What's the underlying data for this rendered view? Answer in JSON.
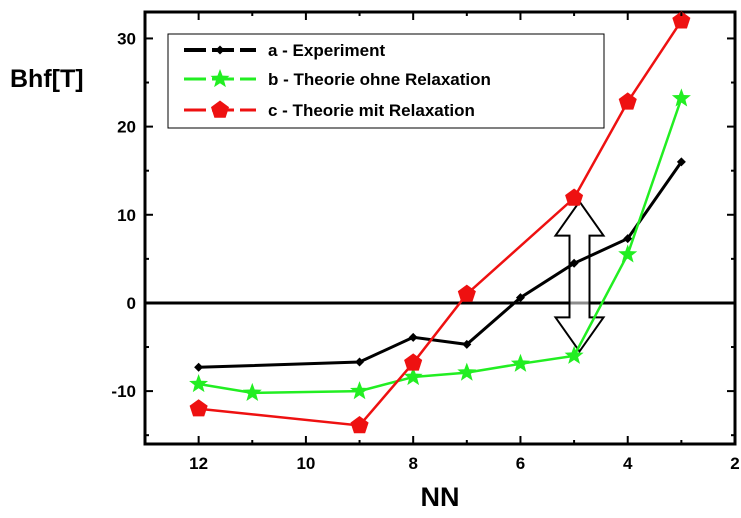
{
  "chart_data": {
    "type": "line",
    "xlabel": "NN",
    "ylabel": "Bhf[T]",
    "xlim": [
      13,
      2
    ],
    "ylim": [
      -16,
      33
    ],
    "x_reversed": true,
    "xticks": [
      12,
      10,
      8,
      6,
      4,
      2
    ],
    "yticks": [
      -10,
      0,
      10,
      20,
      30
    ],
    "zero_line": true,
    "grid": false,
    "legend_position": "top-left",
    "series": [
      {
        "name": "a - Experiment",
        "color": "#000000",
        "marker": "diamond",
        "x": [
          12,
          9,
          8,
          7,
          6,
          5,
          4,
          3
        ],
        "y": [
          -7.3,
          -6.7,
          -3.9,
          -4.7,
          0.6,
          4.5,
          7.3,
          16.0
        ]
      },
      {
        "name": "b - Theorie ohne Relaxation",
        "color": "#22ee22",
        "marker": "star",
        "x": [
          12,
          11,
          9,
          8,
          7,
          6,
          5,
          4,
          3
        ],
        "y": [
          -9.2,
          -10.2,
          -10.0,
          -8.4,
          -7.9,
          -6.9,
          -6.0,
          5.5,
          23.2
        ]
      },
      {
        "name": "c - Theorie mit Relaxation",
        "color": "#ee1111",
        "marker": "pentagon",
        "x": [
          12,
          9,
          8,
          7,
          5,
          4,
          3
        ],
        "y": [
          -12.0,
          -13.9,
          -6.8,
          1.0,
          11.9,
          22.8,
          32.0
        ]
      }
    ],
    "annotation": {
      "type": "double-arrow",
      "x": 4.9,
      "y_from": -5.5,
      "y_to": 11.5
    }
  }
}
